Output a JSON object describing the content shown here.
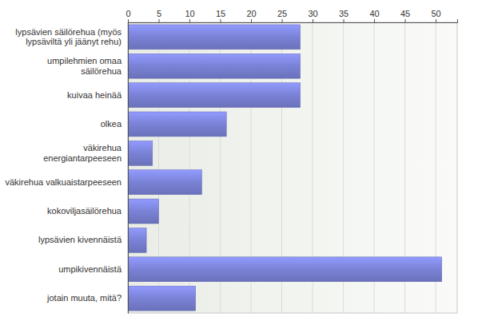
{
  "chart_data": {
    "type": "bar",
    "orientation": "horizontal",
    "categories": [
      "lypsävien säilörehua (myös lypsäviltä yli jäänyt rehu)",
      "umpilehmien omaa säilörehua",
      "kuivaa heinää",
      "olkea",
      "väkirehua energiantarpeeseen",
      "väkirehua valkuaistarpeeseen",
      "kokoviljasäilörehua",
      "lypsävien kivennäistä",
      "umpikivennäistä",
      "jotain muuta, mitä?"
    ],
    "values": [
      28,
      28,
      28,
      16,
      4,
      12,
      5,
      3,
      51,
      11
    ],
    "color": "#7a82d6",
    "xlim": [
      0,
      53.5
    ],
    "xticks": [
      0,
      5,
      10,
      15,
      20,
      25,
      30,
      35,
      40,
      45,
      50
    ],
    "grid": true
  }
}
